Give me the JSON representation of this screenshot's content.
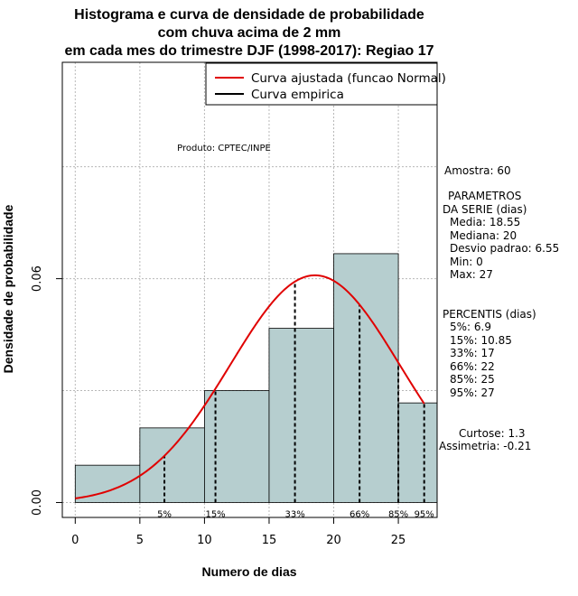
{
  "chart_data": {
    "type": "histogram",
    "title_lines": [
      "Histograma e curva de densidade de probabilidade",
      "com chuva acima de 2 mm",
      "em cada mes do trimestre DJF (1998-2017): Regiao 17"
    ],
    "xlabel": "Numero de dias",
    "ylabel": "Densidade de probabilidade",
    "xlim": [
      -1,
      28
    ],
    "ylim": [
      -0.004,
      0.118
    ],
    "x_ticks": [
      0,
      5,
      10,
      15,
      20,
      25
    ],
    "y_ticks": [
      0.0,
      0.06
    ],
    "y_tick_labels": [
      "0.00",
      "0.06"
    ],
    "bins": [
      {
        "from": 0,
        "to": 5,
        "density": 0.01
      },
      {
        "from": 5,
        "to": 10,
        "density": 0.02
      },
      {
        "from": 10,
        "to": 15,
        "density": 0.03
      },
      {
        "from": 15,
        "to": 20,
        "density": 0.0467
      },
      {
        "from": 20,
        "to": 25,
        "density": 0.0667
      },
      {
        "from": 25,
        "to": 28,
        "density": 0.0267
      }
    ],
    "normal_fit": {
      "mean": 18.55,
      "sd": 6.55,
      "x_from": 0,
      "x_to": 27
    },
    "percentile_lines": [
      {
        "label": "5%",
        "value": 6.9
      },
      {
        "label": "15%",
        "value": 10.85
      },
      {
        "label": "33%",
        "value": 17
      },
      {
        "label": "66%",
        "value": 22
      },
      {
        "label": "85%",
        "value": 25
      },
      {
        "label": "95%",
        "value": 27
      }
    ],
    "legend": [
      {
        "label": "Curva ajustada (funcao Normal)",
        "color": "#e00000"
      },
      {
        "label": "Curva empirica",
        "color": "#000000"
      }
    ],
    "legend_position": "top-right",
    "product_note": "Produto: CPTEC/INPE",
    "colors": {
      "bar_fill": "#b6cecf",
      "fit_curve": "#e00000",
      "grid": "#b8b8b8"
    }
  },
  "stats": {
    "amostra": "Amostra: 60",
    "param_title_1": "PARAMETROS",
    "param_title_2": "DA SERIE (dias)",
    "media": "Media: 18.55",
    "mediana": "Mediana: 20",
    "desvio": "Desvio padrao: 6.55",
    "min": "Min: 0",
    "max": "Max: 27",
    "percentis_title": "PERCENTIS (dias)",
    "p5": "5%: 6.9",
    "p15": "15%: 10.85",
    "p33": "33%: 17",
    "p66": "66%: 22",
    "p85": "85%: 25",
    "p95": "95%: 27",
    "curtose": "Curtose: 1.3",
    "assimetria": "Assimetria: -0.21"
  }
}
